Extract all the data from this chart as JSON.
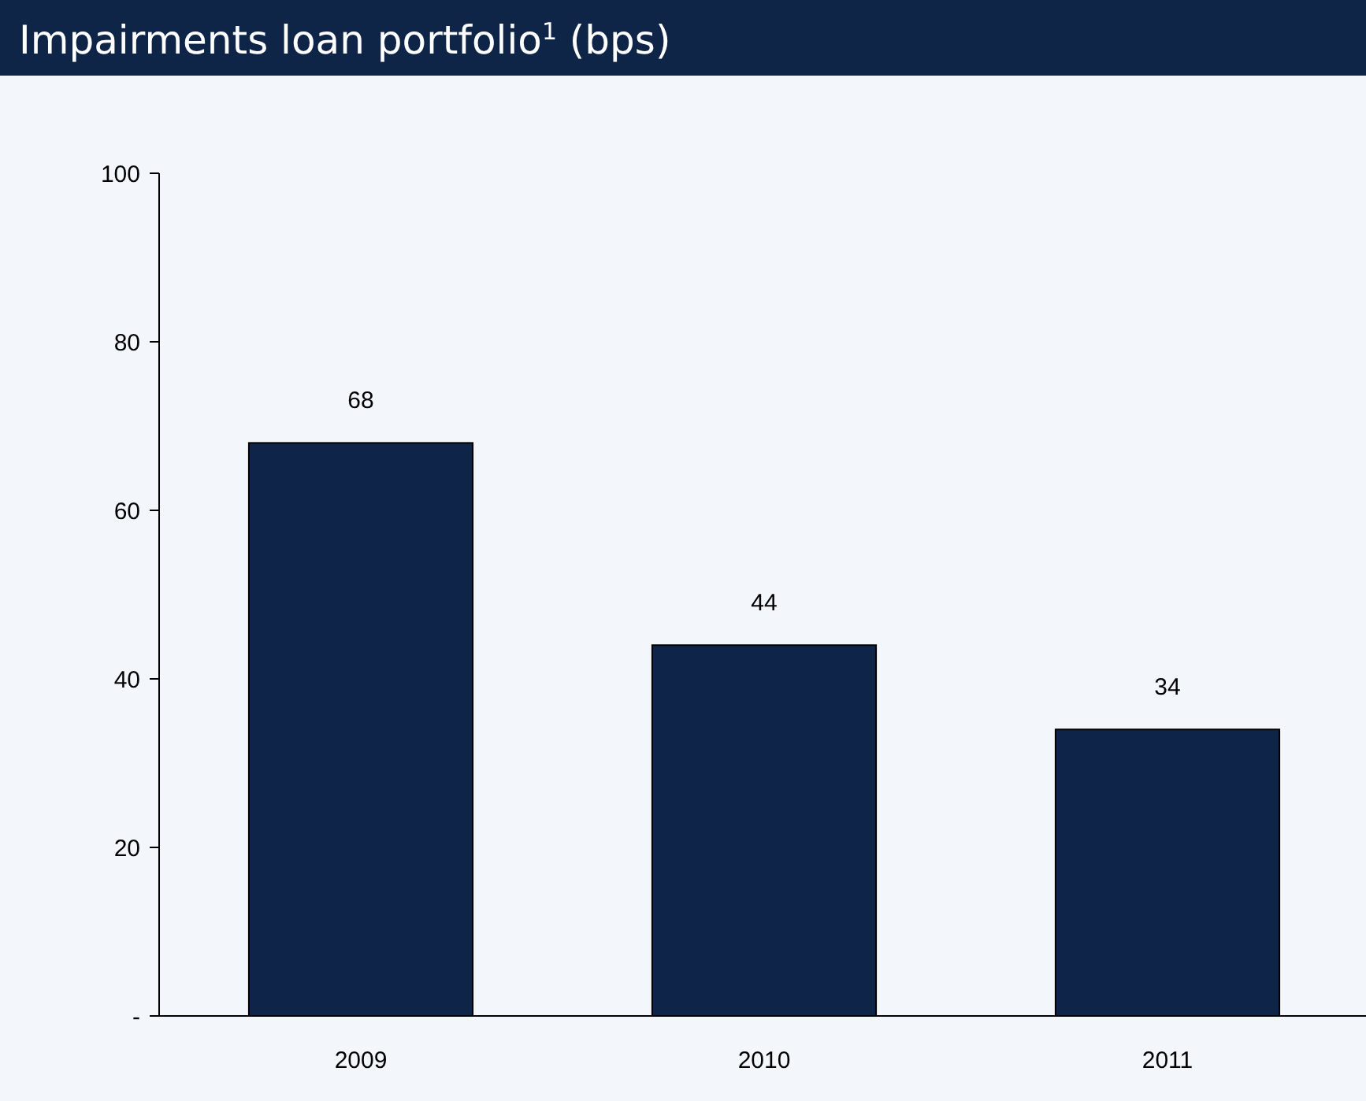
{
  "chart_data": {
    "type": "bar",
    "title": "Impairments loan portfolio$^{1}$ (bps)",
    "categories": [
      "2009",
      "2010",
      "2011"
    ],
    "values": [
      68,
      44,
      34
    ],
    "color": "#0e2549",
    "ylim": [
      0,
      100
    ],
    "yticks": [
      {
        "value": 0,
        "label": "-"
      },
      20,
      40,
      60,
      80,
      100
    ],
    "data_labels": true,
    "grid": false
  }
}
